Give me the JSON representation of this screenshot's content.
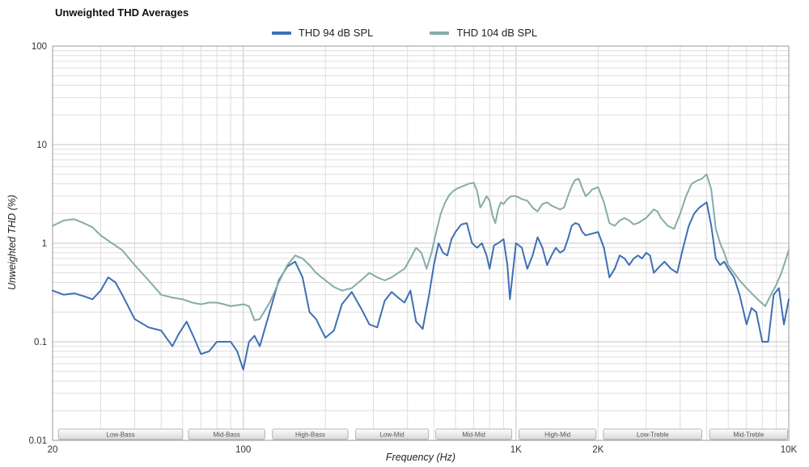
{
  "chart_data": {
    "type": "line",
    "title": "Unweighted THD Averages",
    "xlabel": "Frequency (Hz)",
    "ylabel": "Unweighted THD (%)",
    "x_scale": "log",
    "y_scale": "log",
    "xlim": [
      20,
      10000
    ],
    "ylim": [
      0.01,
      100
    ],
    "grid": true,
    "legend_position": "top-center",
    "x_ticks": [
      {
        "value": 20,
        "label": "20"
      },
      {
        "value": 100,
        "label": "100"
      },
      {
        "value": 1000,
        "label": "1K"
      },
      {
        "value": 2000,
        "label": "2K"
      },
      {
        "value": 10000,
        "label": "10K"
      }
    ],
    "y_ticks": [
      {
        "value": 100,
        "label": "100"
      },
      {
        "value": 10,
        "label": "10"
      },
      {
        "value": 1,
        "label": "1"
      },
      {
        "value": 0.1,
        "label": "0.1"
      },
      {
        "value": 0.01,
        "label": "0.01"
      }
    ],
    "bands": [
      {
        "label": "Low-Bass",
        "from": 21,
        "to": 60
      },
      {
        "label": "Mid-Bass",
        "from": 63,
        "to": 120
      },
      {
        "label": "High-Bass",
        "from": 128,
        "to": 242
      },
      {
        "label": "Low-Mid",
        "from": 258,
        "to": 478
      },
      {
        "label": "Mid-Mid",
        "from": 508,
        "to": 965
      },
      {
        "label": "High-Mid",
        "from": 1025,
        "to": 1965
      },
      {
        "label": "Low-Treble",
        "from": 2090,
        "to": 4800
      },
      {
        "label": "Mid-Treble",
        "from": 5120,
        "to": 9900
      }
    ],
    "series": [
      {
        "name": "THD 94 dB SPL",
        "color": "#3f6fb5",
        "points": [
          [
            20,
            0.33
          ],
          [
            22,
            0.3
          ],
          [
            24,
            0.31
          ],
          [
            26,
            0.29
          ],
          [
            28,
            0.27
          ],
          [
            30,
            0.33
          ],
          [
            32,
            0.45
          ],
          [
            34,
            0.4
          ],
          [
            36,
            0.3
          ],
          [
            40,
            0.17
          ],
          [
            45,
            0.14
          ],
          [
            50,
            0.13
          ],
          [
            55,
            0.09
          ],
          [
            58,
            0.12
          ],
          [
            62,
            0.16
          ],
          [
            66,
            0.11
          ],
          [
            70,
            0.075
          ],
          [
            75,
            0.08
          ],
          [
            80,
            0.1
          ],
          [
            85,
            0.1
          ],
          [
            90,
            0.1
          ],
          [
            95,
            0.08
          ],
          [
            100,
            0.052
          ],
          [
            105,
            0.1
          ],
          [
            110,
            0.115
          ],
          [
            115,
            0.09
          ],
          [
            125,
            0.2
          ],
          [
            135,
            0.42
          ],
          [
            145,
            0.58
          ],
          [
            155,
            0.65
          ],
          [
            165,
            0.45
          ],
          [
            175,
            0.2
          ],
          [
            185,
            0.17
          ],
          [
            200,
            0.11
          ],
          [
            215,
            0.13
          ],
          [
            230,
            0.24
          ],
          [
            250,
            0.32
          ],
          [
            270,
            0.22
          ],
          [
            290,
            0.15
          ],
          [
            310,
            0.14
          ],
          [
            330,
            0.26
          ],
          [
            350,
            0.32
          ],
          [
            370,
            0.28
          ],
          [
            390,
            0.25
          ],
          [
            410,
            0.33
          ],
          [
            430,
            0.16
          ],
          [
            455,
            0.135
          ],
          [
            480,
            0.3
          ],
          [
            500,
            0.6
          ],
          [
            520,
            1.0
          ],
          [
            540,
            0.8
          ],
          [
            560,
            0.75
          ],
          [
            580,
            1.1
          ],
          [
            600,
            1.3
          ],
          [
            630,
            1.55
          ],
          [
            660,
            1.6
          ],
          [
            690,
            1.0
          ],
          [
            720,
            0.9
          ],
          [
            750,
            1.0
          ],
          [
            780,
            0.75
          ],
          [
            800,
            0.55
          ],
          [
            830,
            0.95
          ],
          [
            860,
            1.0
          ],
          [
            900,
            1.1
          ],
          [
            930,
            0.6
          ],
          [
            950,
            0.27
          ],
          [
            980,
            0.6
          ],
          [
            1000,
            1.0
          ],
          [
            1050,
            0.9
          ],
          [
            1100,
            0.55
          ],
          [
            1150,
            0.75
          ],
          [
            1200,
            1.15
          ],
          [
            1250,
            0.9
          ],
          [
            1300,
            0.6
          ],
          [
            1350,
            0.75
          ],
          [
            1400,
            0.9
          ],
          [
            1450,
            0.8
          ],
          [
            1500,
            0.85
          ],
          [
            1550,
            1.1
          ],
          [
            1600,
            1.5
          ],
          [
            1650,
            1.6
          ],
          [
            1700,
            1.55
          ],
          [
            1750,
            1.3
          ],
          [
            1800,
            1.2
          ],
          [
            1900,
            1.25
          ],
          [
            2000,
            1.3
          ],
          [
            2100,
            0.9
          ],
          [
            2200,
            0.45
          ],
          [
            2300,
            0.55
          ],
          [
            2400,
            0.75
          ],
          [
            2500,
            0.7
          ],
          [
            2600,
            0.6
          ],
          [
            2700,
            0.7
          ],
          [
            2800,
            0.75
          ],
          [
            2900,
            0.7
          ],
          [
            3000,
            0.8
          ],
          [
            3100,
            0.75
          ],
          [
            3200,
            0.5
          ],
          [
            3300,
            0.55
          ],
          [
            3500,
            0.65
          ],
          [
            3700,
            0.55
          ],
          [
            3900,
            0.5
          ],
          [
            4100,
            0.9
          ],
          [
            4300,
            1.5
          ],
          [
            4500,
            2.0
          ],
          [
            4700,
            2.3
          ],
          [
            5000,
            2.6
          ],
          [
            5200,
            1.5
          ],
          [
            5400,
            0.7
          ],
          [
            5600,
            0.6
          ],
          [
            5800,
            0.65
          ],
          [
            6000,
            0.55
          ],
          [
            6300,
            0.45
          ],
          [
            6600,
            0.3
          ],
          [
            7000,
            0.15
          ],
          [
            7300,
            0.22
          ],
          [
            7600,
            0.2
          ],
          [
            8000,
            0.1
          ],
          [
            8400,
            0.1
          ],
          [
            8800,
            0.3
          ],
          [
            9200,
            0.35
          ],
          [
            9600,
            0.15
          ],
          [
            10000,
            0.27
          ]
        ]
      },
      {
        "name": "THD 104 dB SPL",
        "color": "#85aca9",
        "points": [
          [
            20,
            1.5
          ],
          [
            22,
            1.7
          ],
          [
            24,
            1.75
          ],
          [
            26,
            1.6
          ],
          [
            28,
            1.45
          ],
          [
            30,
            1.2
          ],
          [
            33,
            1.0
          ],
          [
            36,
            0.85
          ],
          [
            40,
            0.6
          ],
          [
            45,
            0.42
          ],
          [
            50,
            0.3
          ],
          [
            55,
            0.28
          ],
          [
            60,
            0.27
          ],
          [
            65,
            0.25
          ],
          [
            70,
            0.24
          ],
          [
            75,
            0.25
          ],
          [
            80,
            0.25
          ],
          [
            85,
            0.24
          ],
          [
            90,
            0.23
          ],
          [
            95,
            0.235
          ],
          [
            100,
            0.24
          ],
          [
            105,
            0.23
          ],
          [
            110,
            0.165
          ],
          [
            115,
            0.17
          ],
          [
            125,
            0.25
          ],
          [
            135,
            0.4
          ],
          [
            145,
            0.6
          ],
          [
            155,
            0.75
          ],
          [
            165,
            0.7
          ],
          [
            175,
            0.6
          ],
          [
            185,
            0.5
          ],
          [
            200,
            0.42
          ],
          [
            215,
            0.36
          ],
          [
            230,
            0.33
          ],
          [
            250,
            0.35
          ],
          [
            270,
            0.42
          ],
          [
            290,
            0.5
          ],
          [
            310,
            0.45
          ],
          [
            330,
            0.42
          ],
          [
            350,
            0.45
          ],
          [
            370,
            0.5
          ],
          [
            390,
            0.55
          ],
          [
            410,
            0.7
          ],
          [
            430,
            0.9
          ],
          [
            450,
            0.8
          ],
          [
            470,
            0.55
          ],
          [
            490,
            0.8
          ],
          [
            510,
            1.3
          ],
          [
            530,
            2.0
          ],
          [
            550,
            2.6
          ],
          [
            570,
            3.1
          ],
          [
            590,
            3.4
          ],
          [
            610,
            3.6
          ],
          [
            640,
            3.8
          ],
          [
            670,
            4.0
          ],
          [
            700,
            4.1
          ],
          [
            720,
            3.4
          ],
          [
            740,
            2.3
          ],
          [
            760,
            2.6
          ],
          [
            780,
            3.0
          ],
          [
            800,
            2.7
          ],
          [
            820,
            1.9
          ],
          [
            840,
            1.6
          ],
          [
            860,
            2.2
          ],
          [
            880,
            2.6
          ],
          [
            900,
            2.5
          ],
          [
            930,
            2.8
          ],
          [
            960,
            3.0
          ],
          [
            1000,
            3.0
          ],
          [
            1050,
            2.8
          ],
          [
            1100,
            2.7
          ],
          [
            1150,
            2.3
          ],
          [
            1200,
            2.1
          ],
          [
            1250,
            2.5
          ],
          [
            1300,
            2.6
          ],
          [
            1350,
            2.4
          ],
          [
            1400,
            2.3
          ],
          [
            1450,
            2.2
          ],
          [
            1500,
            2.3
          ],
          [
            1550,
            3.0
          ],
          [
            1600,
            3.8
          ],
          [
            1650,
            4.4
          ],
          [
            1700,
            4.5
          ],
          [
            1750,
            3.6
          ],
          [
            1800,
            3.0
          ],
          [
            1850,
            3.2
          ],
          [
            1900,
            3.5
          ],
          [
            2000,
            3.7
          ],
          [
            2100,
            2.6
          ],
          [
            2200,
            1.6
          ],
          [
            2300,
            1.5
          ],
          [
            2400,
            1.7
          ],
          [
            2500,
            1.8
          ],
          [
            2600,
            1.7
          ],
          [
            2700,
            1.55
          ],
          [
            2800,
            1.6
          ],
          [
            2900,
            1.7
          ],
          [
            3000,
            1.8
          ],
          [
            3100,
            2.0
          ],
          [
            3200,
            2.2
          ],
          [
            3300,
            2.1
          ],
          [
            3400,
            1.8
          ],
          [
            3600,
            1.5
          ],
          [
            3800,
            1.4
          ],
          [
            4000,
            2.0
          ],
          [
            4200,
            3.0
          ],
          [
            4400,
            4.0
          ],
          [
            4600,
            4.3
          ],
          [
            4800,
            4.5
          ],
          [
            5000,
            5.0
          ],
          [
            5200,
            3.5
          ],
          [
            5400,
            1.4
          ],
          [
            5600,
            1.0
          ],
          [
            5800,
            0.8
          ],
          [
            6000,
            0.6
          ],
          [
            6300,
            0.5
          ],
          [
            6600,
            0.42
          ],
          [
            7000,
            0.35
          ],
          [
            7400,
            0.3
          ],
          [
            7800,
            0.26
          ],
          [
            8200,
            0.23
          ],
          [
            8600,
            0.3
          ],
          [
            9000,
            0.38
          ],
          [
            9400,
            0.5
          ],
          [
            9700,
            0.65
          ],
          [
            10000,
            0.85
          ]
        ]
      }
    ],
    "colors": {
      "grid_minor": "#dddddd",
      "grid_major": "#c4c4c4",
      "plot_border": "#999999",
      "band_border": "#a0a0a0",
      "band_text": "#555555"
    }
  }
}
